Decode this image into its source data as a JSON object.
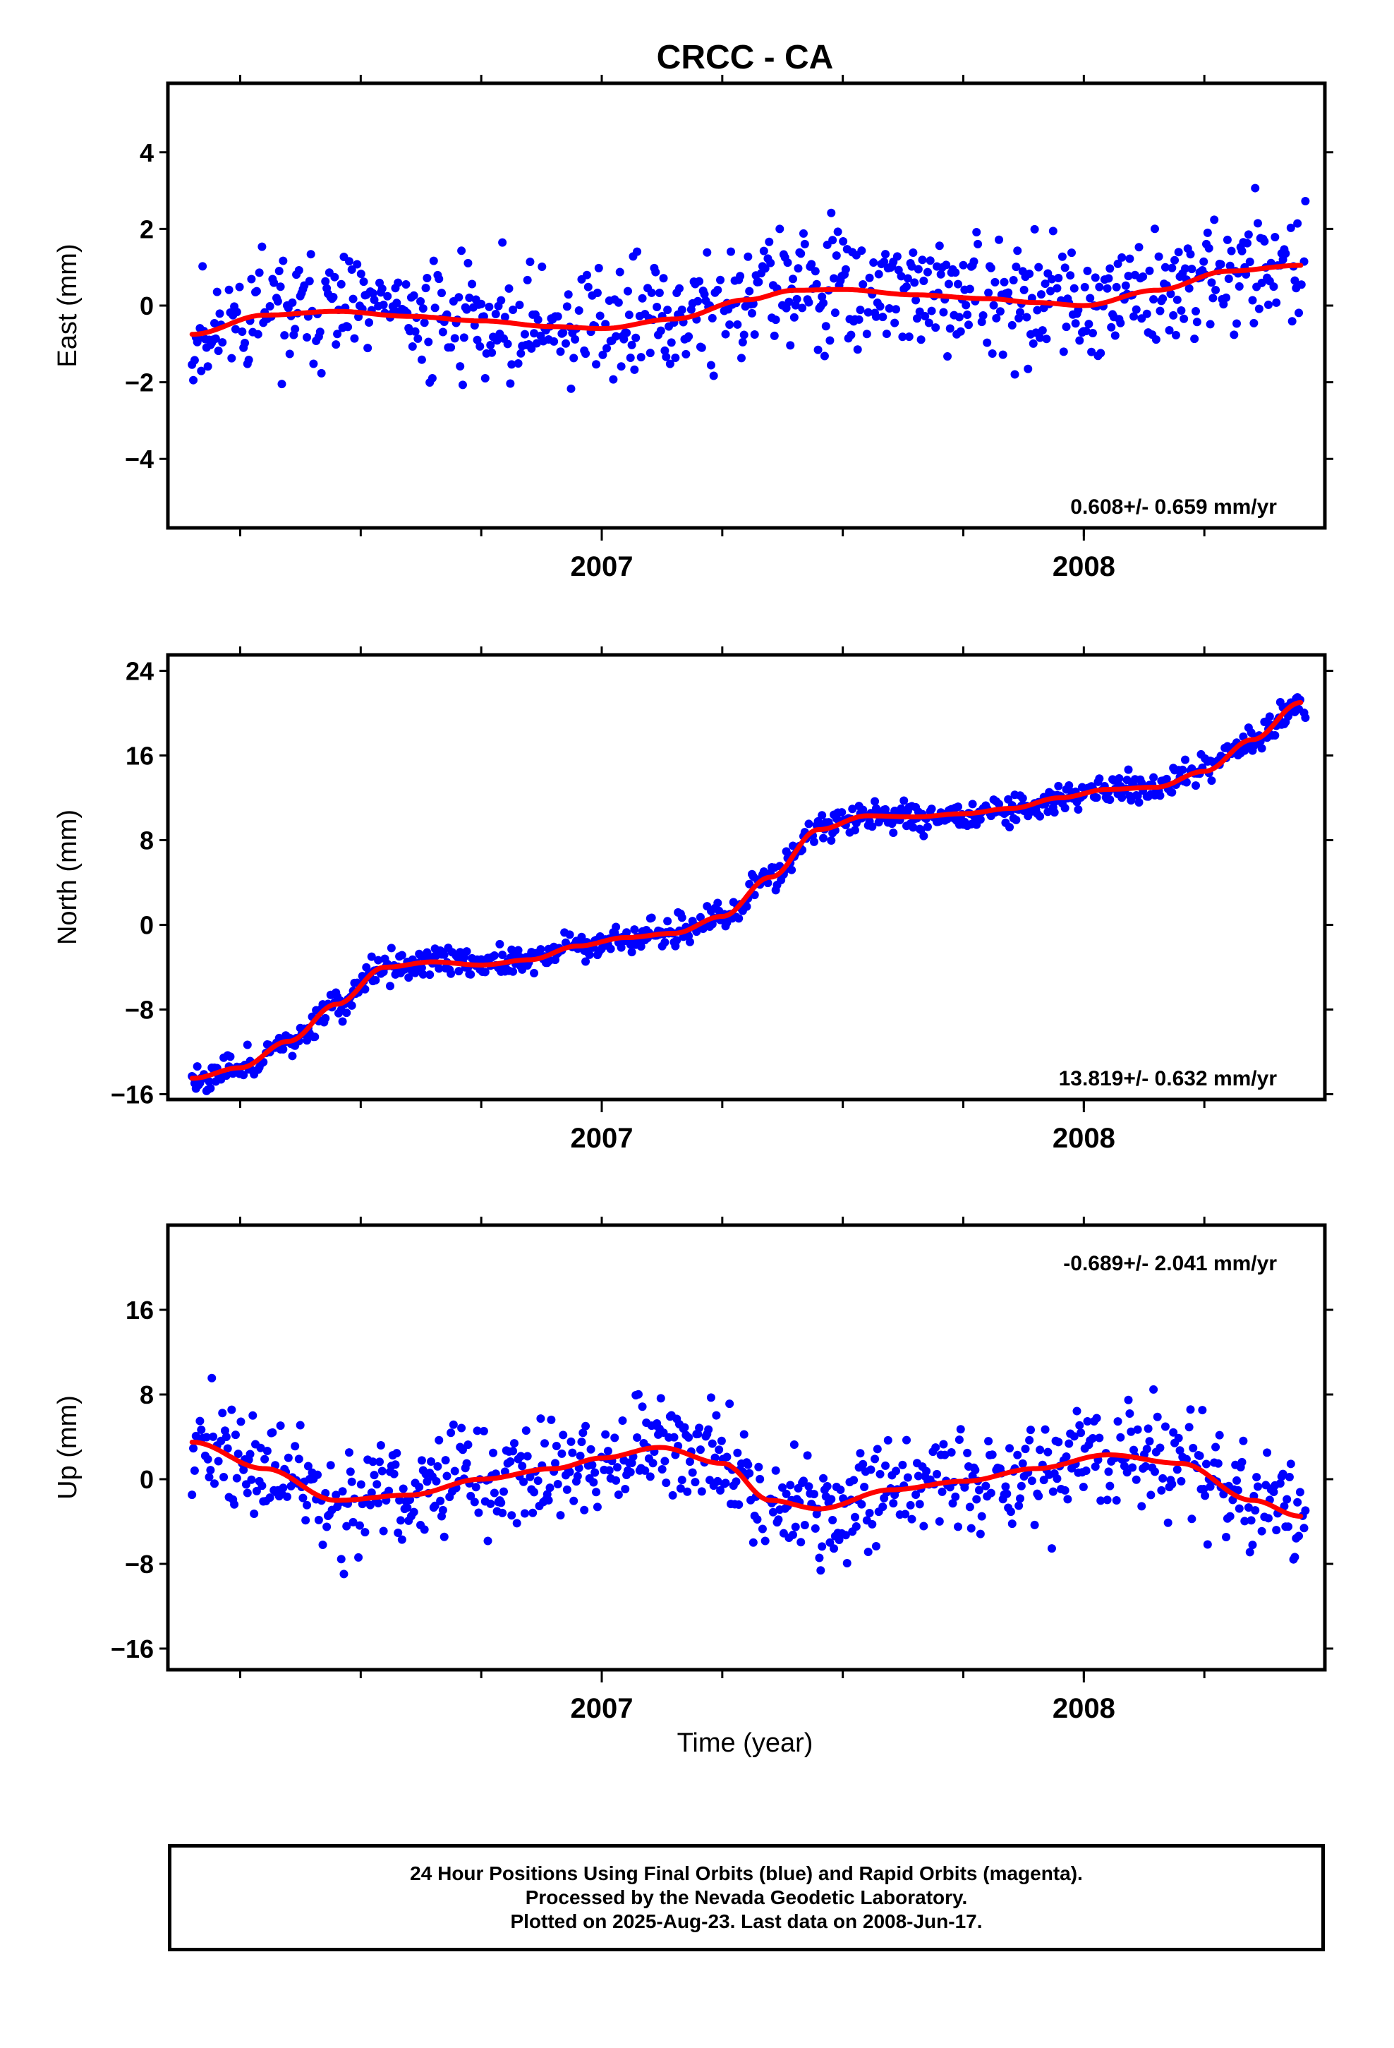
{
  "title": "CRCC - CA",
  "chart_data": [
    {
      "type": "scatter",
      "ylabel": "East (mm)",
      "ylim": [
        -5.8,
        5.8
      ],
      "xlim": [
        2006.1,
        2008.5
      ],
      "yticks": [
        -4,
        -2,
        0,
        2,
        4
      ],
      "yticklabels": [
        "−4",
        "−2",
        "0",
        "2",
        "4"
      ],
      "xticklabels": [
        "2007",
        "2008"
      ],
      "rate": "0.608+/- 0.659 mm/yr",
      "points_color": "#0000ff",
      "fit_color": "#ff0000",
      "fit": {
        "x": [
          2006.15,
          2006.3,
          2006.45,
          2006.6,
          2006.75,
          2006.9,
          2007.0,
          2007.15,
          2007.3,
          2007.4,
          2007.5,
          2007.65,
          2007.8,
          2007.9,
          2008.0,
          2008.15,
          2008.3,
          2008.45
        ],
        "y": [
          -0.75,
          -0.25,
          -0.15,
          -0.28,
          -0.4,
          -0.55,
          -0.6,
          -0.35,
          0.15,
          0.4,
          0.42,
          0.28,
          0.18,
          0.08,
          0.0,
          0.4,
          0.9,
          1.05
        ]
      },
      "noise": 1.7,
      "seed": 11
    },
    {
      "type": "scatter",
      "ylabel": "North (mm)",
      "ylim": [
        -16.5,
        25.5
      ],
      "xlim": [
        2006.1,
        2008.5
      ],
      "yticks": [
        -16,
        -8,
        0,
        8,
        16,
        24
      ],
      "yticklabels": [
        "−16",
        "−8",
        "0",
        "8",
        "16",
        "24"
      ],
      "xticklabels": [
        "2007",
        "2008"
      ],
      "rate": "13.819+/- 0.632 mm/yr",
      "points_color": "#0000ff",
      "fit_color": "#ff0000",
      "fit": {
        "x": [
          2006.15,
          2006.25,
          2006.35,
          2006.45,
          2006.55,
          2006.65,
          2006.75,
          2006.85,
          2006.95,
          2007.05,
          2007.15,
          2007.25,
          2007.35,
          2007.45,
          2007.55,
          2007.65,
          2007.75,
          2007.85,
          2007.95,
          2008.05,
          2008.15,
          2008.25,
          2008.35,
          2008.45
        ],
        "y": [
          -14.5,
          -13.5,
          -11.0,
          -7.5,
          -4.0,
          -3.5,
          -3.8,
          -3.3,
          -2.0,
          -1.2,
          -0.8,
          0.8,
          4.5,
          9.0,
          10.3,
          10.2,
          10.5,
          11.0,
          12.0,
          12.8,
          13.0,
          14.5,
          17.5,
          21.0
        ]
      },
      "noise": 1.5,
      "seed": 23
    },
    {
      "type": "scatter",
      "ylabel": "Up (mm)",
      "xlabel": "Time (year)",
      "ylim": [
        -18,
        24
      ],
      "xlim": [
        2006.1,
        2008.5
      ],
      "yticks": [
        -16,
        -8,
        0,
        8,
        16
      ],
      "yticklabels": [
        "−16",
        "−8",
        "0",
        "8",
        "16"
      ],
      "xticklabels": [
        "2007",
        "2008"
      ],
      "rate": "-0.689+/- 2.041 mm/yr",
      "points_color": "#0000ff",
      "fit_color": "#ff0000",
      "fit": {
        "x": [
          2006.15,
          2006.3,
          2006.45,
          2006.6,
          2006.75,
          2006.9,
          2007.0,
          2007.12,
          2007.25,
          2007.35,
          2007.45,
          2007.6,
          2007.75,
          2007.9,
          2008.05,
          2008.2,
          2008.35,
          2008.45
        ],
        "y": [
          3.5,
          1.0,
          -2.0,
          -1.5,
          0.0,
          1.0,
          2.0,
          3.0,
          1.5,
          -2.0,
          -2.8,
          -1.0,
          -0.2,
          1.0,
          2.3,
          1.5,
          -2.0,
          -3.5
        ]
      },
      "noise": 5.5,
      "seed": 37
    }
  ],
  "footer": {
    "line1": "24 Hour Positions Using Final Orbits (blue) and Rapid Orbits (magenta).",
    "line2": "Processed by the Nevada Geodetic Laboratory.",
    "line3": "Plotted on 2025-Aug-23. Last data on 2008-Jun-17."
  }
}
